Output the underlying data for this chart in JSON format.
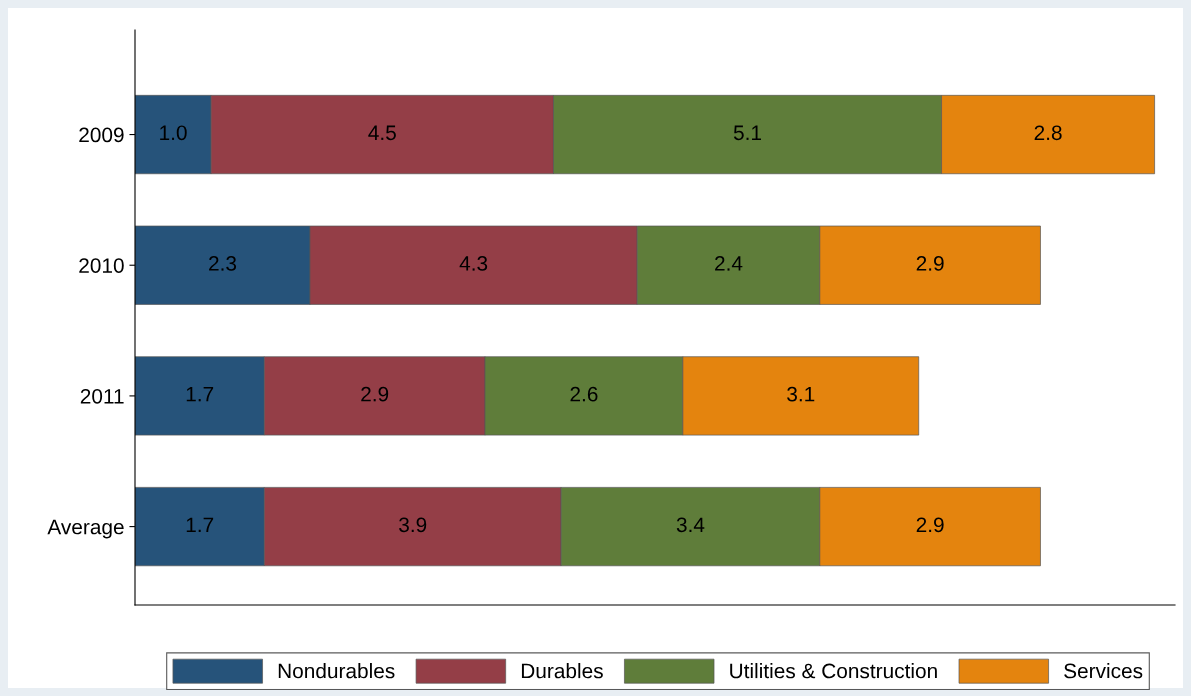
{
  "chart_data": {
    "type": "bar",
    "orientation": "horizontal",
    "stacked": true,
    "tick_labels": "y",
    "grid": false,
    "legend": "bottom",
    "categories": [
      "2009",
      "2010",
      "2011",
      "Average"
    ],
    "series": [
      {
        "name": "Nondurables",
        "color": "#26537a",
        "values": [
          1.0,
          2.3,
          1.7,
          1.7
        ],
        "value_labels": [
          "1.0",
          "2.3",
          "1.7",
          "1.7"
        ]
      },
      {
        "name": "Durables",
        "color": "#943e47",
        "values": [
          4.5,
          4.3,
          2.9,
          3.9
        ],
        "value_labels": [
          "4.5",
          "4.3",
          "2.9",
          "3.9"
        ]
      },
      {
        "name": "Utilities & Construction",
        "color": "#5f7d3a",
        "values": [
          5.1,
          2.4,
          2.6,
          3.4
        ],
        "value_labels": [
          "5.1",
          "2.4",
          "2.6",
          "3.4"
        ]
      },
      {
        "name": "Services",
        "color": "#e4840e",
        "values": [
          2.8,
          2.9,
          3.1,
          2.9
        ],
        "value_labels": [
          "2.8",
          "2.9",
          "3.1",
          "2.9"
        ]
      }
    ]
  }
}
